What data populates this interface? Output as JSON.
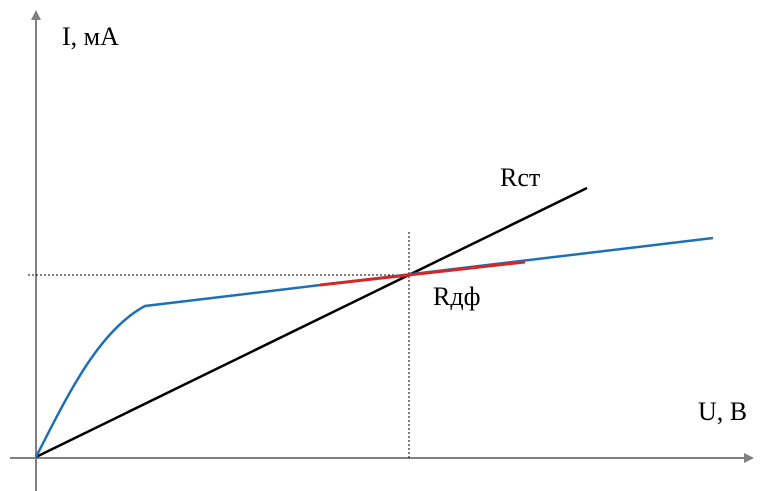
{
  "labels": {
    "y_axis": "I, мА",
    "x_axis": "U, В",
    "r_static": "Rст",
    "r_diff": "Rдф"
  },
  "colors": {
    "axis": "#808080",
    "characteristic": "#1f6fb5",
    "static_line": "#000000",
    "diff_segment": "#d62728",
    "guides": "#000000"
  }
}
